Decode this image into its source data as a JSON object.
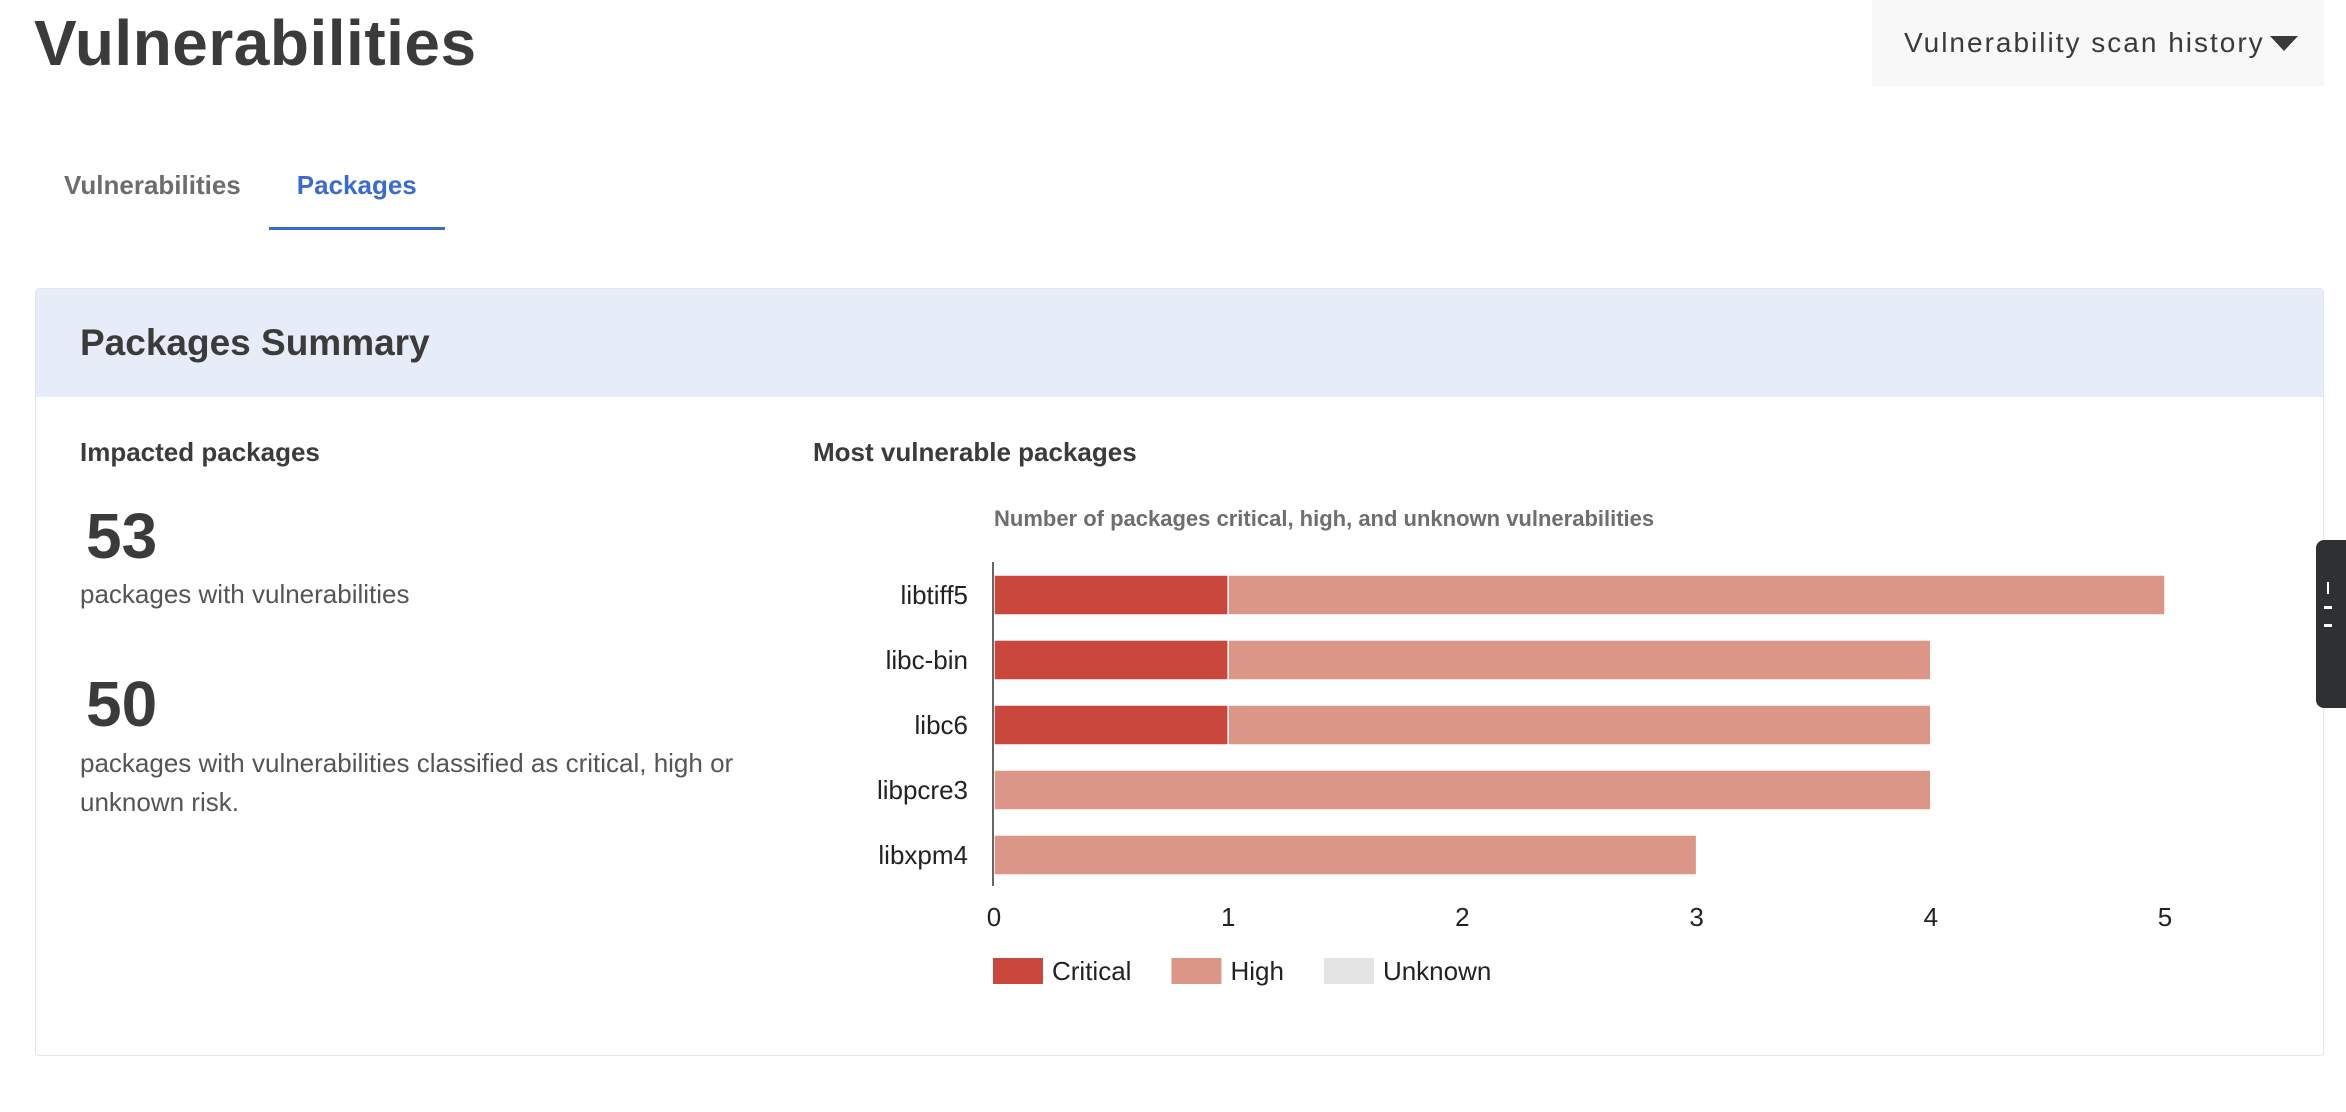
{
  "header": {
    "title": "Vulnerabilities",
    "history_button": "Vulnerability scan history"
  },
  "tabs": [
    {
      "label": "Vulnerabilities",
      "active": false
    },
    {
      "label": "Packages",
      "active": true
    }
  ],
  "summary": {
    "title": "Packages Summary",
    "impacted": {
      "label": "Impacted packages",
      "total_count": "53",
      "total_desc": "packages with vulnerabilities",
      "risk_count": "50",
      "risk_desc": "packages with vulnerabilities classified as critical, high or unknown risk."
    },
    "most_vulnerable_label": "Most vulnerable packages"
  },
  "colors": {
    "critical": "#c9473d",
    "high": "#dc9688",
    "unknown": "#e4e4e4",
    "accent": "#3c6bcf"
  },
  "chart_data": {
    "type": "bar",
    "orientation": "horizontal",
    "stacked": true,
    "title": "Number of packages critical, high, and unknown vulnerabilities",
    "categories": [
      "libtiff5",
      "libc-bin",
      "libc6",
      "libpcre3",
      "libxpm4"
    ],
    "series": [
      {
        "name": "Critical",
        "values": [
          1,
          1,
          1,
          0,
          0
        ]
      },
      {
        "name": "High",
        "values": [
          4,
          3,
          3,
          4,
          3
        ]
      },
      {
        "name": "Unknown",
        "values": [
          0,
          0,
          0,
          0,
          0
        ]
      }
    ],
    "xlim": [
      0,
      5
    ],
    "xticks": [
      "0",
      "1",
      "2",
      "3",
      "4",
      "5"
    ],
    "grid": false,
    "legend": "bottom-left"
  }
}
